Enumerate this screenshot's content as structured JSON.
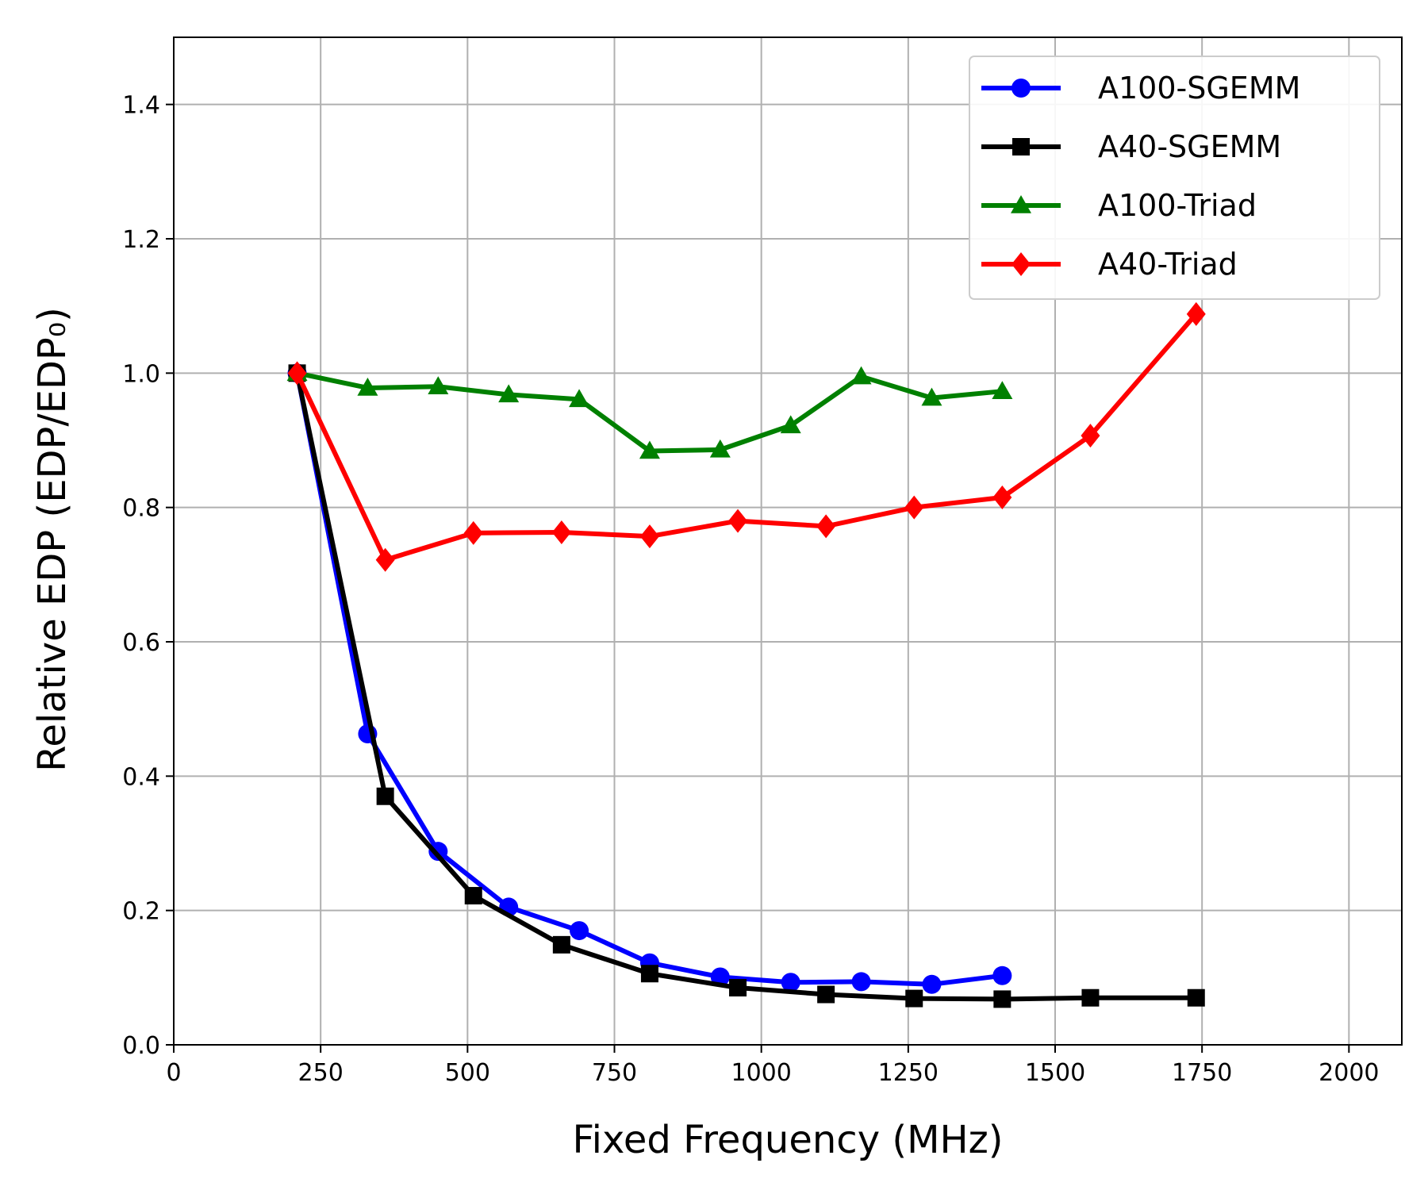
{
  "chart_data": {
    "type": "line",
    "title": "",
    "xlabel": "Fixed Frequency (MHz)",
    "ylabel": "Relative EDP (EDP/EDP₀)",
    "xlim": [
      0,
      2090
    ],
    "ylim": [
      0,
      1.5
    ],
    "xticks": [
      0,
      250,
      500,
      750,
      1000,
      1250,
      1500,
      1750,
      2000
    ],
    "yticks": [
      0.0,
      0.2,
      0.4,
      0.6,
      0.8,
      1.0,
      1.2,
      1.4
    ],
    "xtick_labels": [
      "0",
      "250",
      "500",
      "750",
      "1000",
      "1250",
      "1500",
      "1750",
      "2000"
    ],
    "ytick_labels": [
      "0.0",
      "0.2",
      "0.4",
      "0.6",
      "0.8",
      "1.0",
      "1.2",
      "1.4"
    ],
    "grid": true,
    "legend_position": "top-right",
    "series": [
      {
        "name": "A100-SGEMM",
        "color": "#0000ff",
        "marker": "circle",
        "x": [
          210,
          330,
          450,
          570,
          690,
          810,
          930,
          1050,
          1170,
          1290,
          1410
        ],
        "y": [
          1.0,
          0.463,
          0.288,
          0.205,
          0.17,
          0.122,
          0.101,
          0.093,
          0.094,
          0.09,
          0.103
        ]
      },
      {
        "name": "A40-SGEMM",
        "color": "#000000",
        "marker": "square",
        "x": [
          210,
          360,
          510,
          660,
          810,
          960,
          1110,
          1260,
          1410,
          1560,
          1740
        ],
        "y": [
          1.0,
          0.37,
          0.222,
          0.149,
          0.106,
          0.085,
          0.075,
          0.069,
          0.068,
          0.07,
          0.07
        ]
      },
      {
        "name": "A100-Triad",
        "color": "#008000",
        "marker": "triangle",
        "x": [
          210,
          330,
          450,
          570,
          690,
          810,
          930,
          1050,
          1170,
          1290,
          1410
        ],
        "y": [
          1.0,
          0.978,
          0.98,
          0.968,
          0.961,
          0.884,
          0.886,
          0.922,
          0.995,
          0.963,
          0.973
        ]
      },
      {
        "name": "A40-Triad",
        "color": "#ff0000",
        "marker": "diamond",
        "x": [
          210,
          360,
          510,
          660,
          810,
          960,
          1110,
          1260,
          1410,
          1560,
          1740
        ],
        "y": [
          1.0,
          0.722,
          0.762,
          0.763,
          0.757,
          0.78,
          0.772,
          0.8,
          0.815,
          0.907,
          1.088
        ]
      }
    ]
  }
}
